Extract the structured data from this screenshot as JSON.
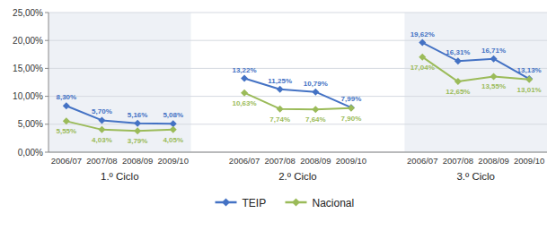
{
  "chart_data": {
    "type": "line",
    "categories": [
      "2006/07",
      "2007/08",
      "2008/09",
      "2009/10",
      null,
      "2006/07",
      "2007/08",
      "2008/09",
      "2009/10",
      null,
      "2006/07",
      "2007/08",
      "2008/09",
      "2009/10"
    ],
    "annotations": [
      "1.º Ciclo",
      "2.º Ciclo",
      "3.º Ciclo"
    ],
    "series": [
      {
        "name": "TEIP",
        "color": "#4472C4",
        "marker": "diamond",
        "values": [
          8.3,
          5.7,
          5.16,
          5.08,
          null,
          13.22,
          11.25,
          10.79,
          7.99,
          null,
          19.62,
          16.31,
          16.71,
          13.13
        ],
        "value_labels": [
          "8,30%",
          "5,70%",
          "5,16%",
          "5,08%",
          null,
          "13,22%",
          "11,25%",
          "10,79%",
          "7,99%",
          null,
          "19,62%",
          "16,31%",
          "16,71%",
          "13,13%"
        ]
      },
      {
        "name": "Nacional",
        "color": "#9BBB59",
        "marker": "diamond",
        "values": [
          5.55,
          4.03,
          3.79,
          4.05,
          null,
          10.63,
          7.74,
          7.64,
          7.9,
          null,
          17.04,
          12.65,
          13.55,
          13.01
        ],
        "value_labels": [
          "5,55%",
          "4,03%",
          "3,79%",
          "4,05%",
          null,
          "10,63%",
          "7,74%",
          "7,64%",
          "7,90%",
          null,
          "17,04%",
          "12,65%",
          "13,55%",
          "13,01%"
        ]
      }
    ],
    "ylim": [
      0,
      25
    ],
    "yticks": [
      {
        "value": 0.0,
        "label": "0,00%"
      },
      {
        "value": 5.0,
        "label": "5,00%"
      },
      {
        "value": 10.0,
        "label": "10,00%"
      },
      {
        "value": 15.0,
        "label": "15,00%"
      },
      {
        "value": 20.0,
        "label": "20,00%"
      },
      {
        "value": 25.0,
        "label": "25,00%"
      }
    ],
    "grid": true,
    "data_labels": true,
    "legend": "bottom"
  }
}
